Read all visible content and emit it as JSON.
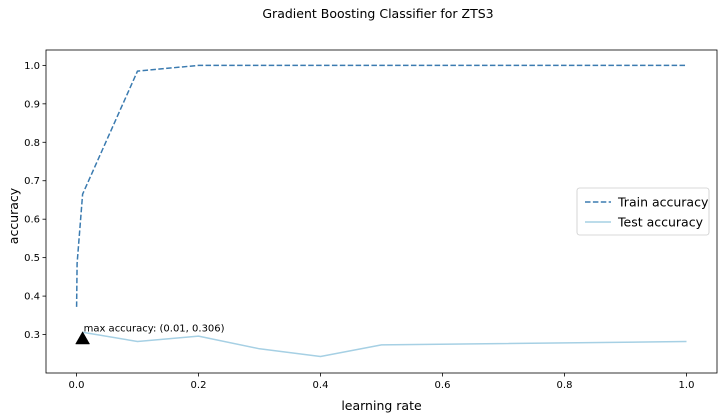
{
  "chart_data": {
    "type": "line",
    "title": "Gradient Boosting Classifier for ZTS3",
    "xlabel": "learning rate",
    "ylabel": "accuracy",
    "xlim": [
      -0.05,
      1.05
    ],
    "ylim": [
      0.2,
      1.04
    ],
    "xticks": [
      0.0,
      0.2,
      0.4,
      0.6,
      0.8,
      1.0
    ],
    "xtick_labels": [
      "0.0",
      "0.2",
      "0.4",
      "0.6",
      "0.8",
      "1.0"
    ],
    "yticks": [
      0.3,
      0.4,
      0.5,
      0.6,
      0.7,
      0.8,
      0.9,
      1.0
    ],
    "ytick_labels": [
      "0.3",
      "0.4",
      "0.5",
      "0.6",
      "0.7",
      "0.8",
      "0.9",
      "1.0"
    ],
    "grid": false,
    "legend_position": "center-right",
    "series": [
      {
        "name": "Train accuracy",
        "style": "dashed",
        "color": "#3b7bb0",
        "x": [
          0.0001,
          0.001,
          0.01,
          0.1,
          0.2,
          0.3,
          0.4,
          0.5,
          0.6,
          0.7,
          0.8,
          0.9,
          1.0
        ],
        "values": [
          0.372,
          0.485,
          0.665,
          0.985,
          1.0,
          1.0,
          1.0,
          1.0,
          1.0,
          1.0,
          1.0,
          1.0,
          1.0
        ]
      },
      {
        "name": "Test accuracy",
        "style": "solid",
        "color": "#a6d0e4",
        "x": [
          0.01,
          0.1,
          0.2,
          0.3,
          0.4,
          0.5,
          1.0
        ],
        "values": [
          0.306,
          0.282,
          0.296,
          0.263,
          0.243,
          0.273,
          0.282
        ]
      }
    ],
    "annotations": [
      {
        "text": "max accuracy: (0.01, 0.306)",
        "x": 0.01,
        "y": 0.29,
        "marker": "triangle-up",
        "color": "#000000"
      }
    ]
  }
}
